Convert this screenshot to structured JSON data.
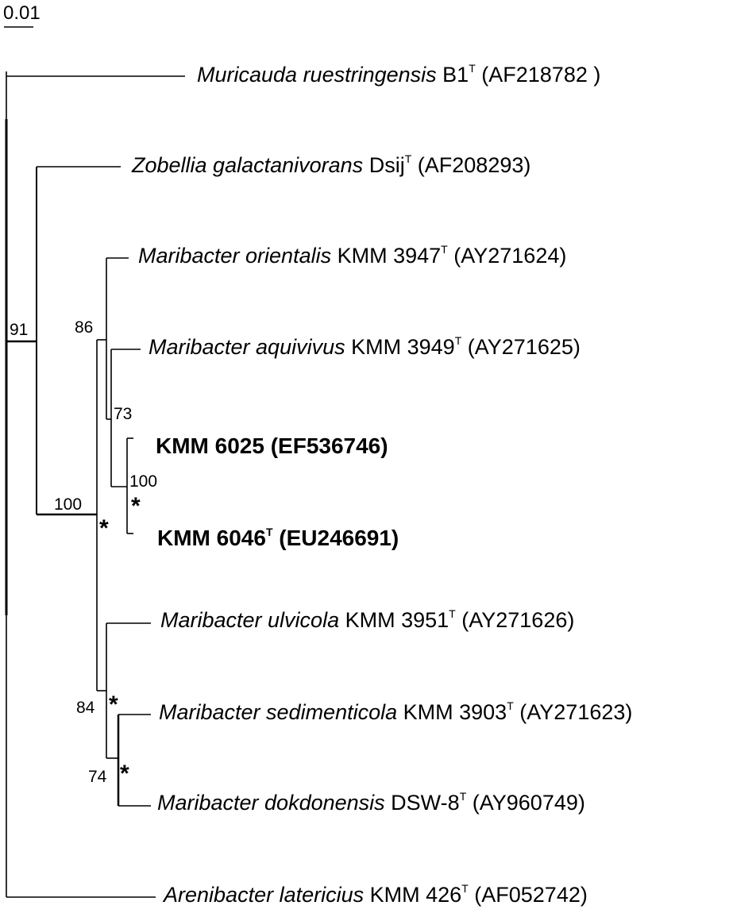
{
  "scale_bar": {
    "label": "0.01"
  },
  "taxa": [
    {
      "id": "muricauda",
      "species": "Muricauda ruestringensis",
      "strain": "B1",
      "type_mark": "T",
      "accession": "(AF218782 )"
    },
    {
      "id": "zobellia",
      "species": "Zobellia galactanivorans",
      "strain": "Dsij",
      "type_mark": "T",
      "accession": "(AF208293)"
    },
    {
      "id": "orientalis",
      "species": "Maribacter orientalis",
      "strain": "KMM 3947",
      "type_mark": "T",
      "accession": "(AY271624)"
    },
    {
      "id": "aquivivus",
      "species": "Maribacter aquivivus",
      "strain": "KMM 3949",
      "type_mark": "T",
      "accession": "(AY271625)"
    },
    {
      "id": "kmm6025",
      "species": "",
      "strain": "KMM 6025",
      "type_mark": "",
      "accession": "(EF536746)"
    },
    {
      "id": "kmm6046",
      "species": "",
      "strain": "KMM 6046",
      "type_mark": "T",
      "accession": "(EU246691)"
    },
    {
      "id": "ulvicola",
      "species": "Maribacter ulvicola",
      "strain": "KMM 3951",
      "type_mark": "T",
      "accession": "(AY271626)"
    },
    {
      "id": "sedimenticola",
      "species": "Maribacter sedimenticola",
      "strain": "KMM 3903",
      "type_mark": "T",
      "accession": "(AY271623)"
    },
    {
      "id": "dokdonensis",
      "species": "Maribacter dokdonensis",
      "strain": "DSW-8",
      "type_mark": "T",
      "accession": "(AY960749)"
    },
    {
      "id": "arenibacter",
      "species": "Arenibacter latericius",
      "strain": "KMM 426",
      "type_mark": "T",
      "accession": "(AF052742)"
    }
  ],
  "bootstrap": {
    "zobellia_maribacter": "91",
    "maribacter_genus": "100",
    "orientalis_clade": "86",
    "aquivivus_clade": "73",
    "kmm_pair": "100",
    "ulvicola_clade": "84",
    "sed_dok": "74"
  },
  "marker": "*"
}
